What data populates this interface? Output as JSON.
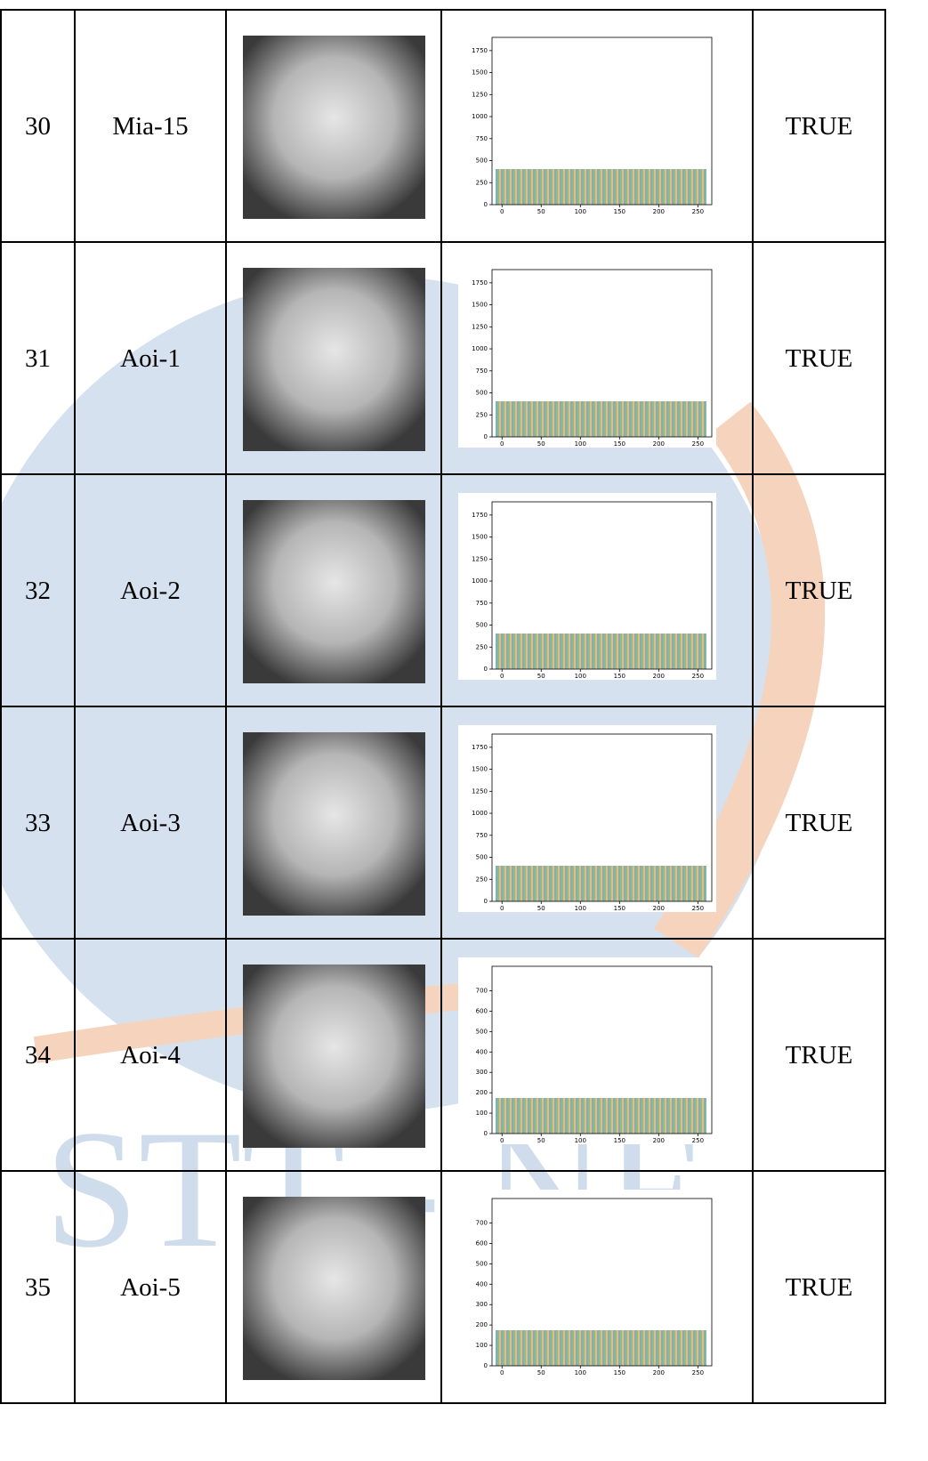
{
  "watermark": "STT - NF",
  "rows": [
    {
      "no": "30",
      "name": "Mia-15",
      "result": "TRUE",
      "histogram": {
        "xlim": [
          -12.75,
          267.75
        ],
        "xticks": [
          0,
          50,
          100,
          150,
          200,
          250
        ],
        "ylim": [
          0,
          1900
        ],
        "yticks": [
          0,
          250,
          500,
          750,
          1000,
          1250,
          1500,
          1750
        ]
      }
    },
    {
      "no": "31",
      "name": "Aoi-1",
      "result": "TRUE",
      "histogram": {
        "xlim": [
          -12.75,
          267.75
        ],
        "xticks": [
          0,
          50,
          100,
          150,
          200,
          250
        ],
        "ylim": [
          0,
          1900
        ],
        "yticks": [
          0,
          250,
          500,
          750,
          1000,
          1250,
          1500,
          1750
        ]
      }
    },
    {
      "no": "32",
      "name": "Aoi-2",
      "result": "TRUE",
      "histogram": {
        "xlim": [
          -12.75,
          267.75
        ],
        "xticks": [
          0,
          50,
          100,
          150,
          200,
          250
        ],
        "ylim": [
          0,
          1900
        ],
        "yticks": [
          0,
          250,
          500,
          750,
          1000,
          1250,
          1500,
          1750
        ]
      }
    },
    {
      "no": "33",
      "name": "Aoi-3",
      "result": "TRUE",
      "histogram": {
        "xlim": [
          -12.75,
          267.75
        ],
        "xticks": [
          0,
          50,
          100,
          150,
          200,
          250
        ],
        "ylim": [
          0,
          1900
        ],
        "yticks": [
          0,
          250,
          500,
          750,
          1000,
          1250,
          1500,
          1750
        ]
      }
    },
    {
      "no": "34",
      "name": "Aoi-4",
      "result": "TRUE",
      "histogram": {
        "xlim": [
          -12.75,
          267.75
        ],
        "xticks": [
          0,
          50,
          100,
          150,
          200,
          250
        ],
        "ylim": [
          0,
          820
        ],
        "yticks": [
          0,
          100,
          200,
          300,
          400,
          500,
          600,
          700
        ]
      }
    },
    {
      "no": "35",
      "name": "Aoi-5",
      "result": "TRUE",
      "histogram": {
        "xlim": [
          -12.75,
          267.75
        ],
        "xticks": [
          0,
          50,
          100,
          150,
          200,
          250
        ],
        "ylim": [
          0,
          820
        ],
        "yticks": [
          0,
          100,
          200,
          300,
          400,
          500,
          600,
          700
        ]
      }
    }
  ]
}
